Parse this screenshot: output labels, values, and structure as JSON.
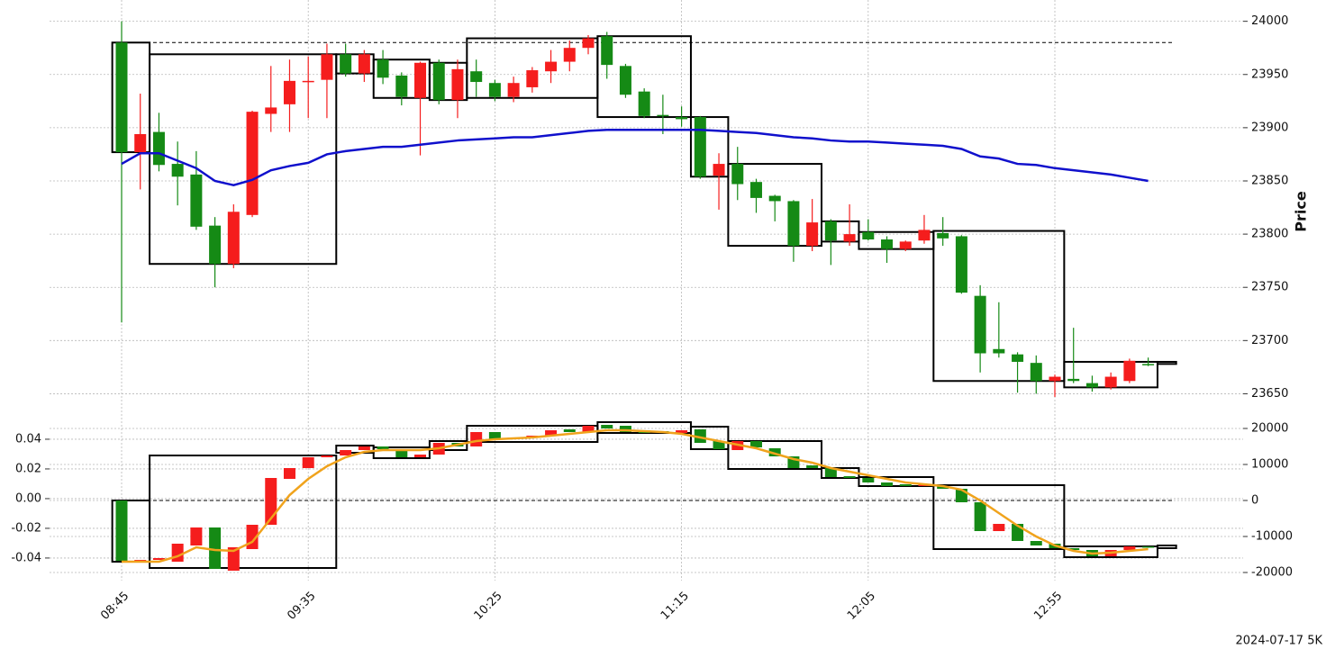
{
  "chart_data": [
    {
      "type": "candlestick",
      "ylabel": "Price",
      "ylim": [
        23625,
        24020
      ],
      "yticks": [
        23650,
        23700,
        23750,
        23800,
        23850,
        23900,
        23950,
        24000
      ],
      "grid": true,
      "up_color": "#f51d1d",
      "down_color": "#158a15",
      "open": [
        23980,
        23877,
        23896,
        23866,
        23856,
        23808,
        23772,
        23818,
        23913,
        23922,
        23943,
        23945,
        23969,
        23951,
        23964,
        23949,
        23928,
        23961,
        23926,
        23953,
        23942,
        23929,
        23938,
        23953,
        23962,
        23975,
        23986,
        23958,
        23934,
        23912,
        23910,
        23910,
        23855,
        23866,
        23849,
        23836,
        23831,
        23789,
        23812,
        23793,
        23802,
        23795,
        23786,
        23794,
        23801,
        23798,
        23742,
        23692,
        23687,
        23679,
        23662,
        23664,
        23660,
        23656,
        23662,
        23678
      ],
      "high": [
        24000,
        23932,
        23914,
        23887,
        23878,
        23816,
        23828,
        23916,
        23958,
        23964,
        23967,
        23979,
        23979,
        23973,
        23973,
        23952,
        23962,
        23964,
        23964,
        23964,
        23945,
        23948,
        23957,
        23973,
        23982,
        23987,
        23990,
        23960,
        23937,
        23931,
        23920,
        23911,
        23876,
        23882,
        23852,
        23837,
        23832,
        23833,
        23814,
        23828,
        23814,
        23798,
        23794,
        23818,
        23816,
        23799,
        23752,
        23736,
        23689,
        23686,
        23668,
        23712,
        23667,
        23670,
        23683,
        23684
      ],
      "low": [
        23717,
        23842,
        23859,
        23827,
        23804,
        23750,
        23768,
        23816,
        23896,
        23896,
        23909,
        23909,
        23948,
        23943,
        23941,
        23921,
        23874,
        23922,
        23909,
        23929,
        23925,
        23924,
        23933,
        23942,
        23953,
        23969,
        23946,
        23928,
        23909,
        23894,
        23901,
        23852,
        23823,
        23832,
        23820,
        23812,
        23774,
        23784,
        23771,
        23789,
        23794,
        23773,
        23784,
        23791,
        23789,
        23744,
        23670,
        23684,
        23651,
        23650,
        23647,
        23660,
        23652,
        23654,
        23660,
        23676
      ],
      "close": [
        23877,
        23894,
        23865,
        23854,
        23807,
        23772,
        23821,
        23915,
        23919,
        23944,
        23944,
        23969,
        23951,
        23969,
        23947,
        23929,
        23961,
        23926,
        23955,
        23943,
        23929,
        23942,
        23954,
        23962,
        23975,
        23984,
        23959,
        23931,
        23911,
        23911,
        23908,
        23854,
        23866,
        23847,
        23834,
        23831,
        23789,
        23811,
        23794,
        23800,
        23795,
        23786,
        23793,
        23804,
        23796,
        23745,
        23688,
        23688,
        23680,
        23662,
        23666,
        23662,
        23656,
        23666,
        23681,
        23677
      ],
      "line": {
        "color": "#1010cc",
        "values": [
          23866,
          23876,
          23876,
          23869,
          23862,
          23850,
          23846,
          23851,
          23860,
          23864,
          23867,
          23875,
          23878,
          23880,
          23882,
          23882,
          23884,
          23886,
          23888,
          23889,
          23890,
          23891,
          23891,
          23893,
          23895,
          23897,
          23898,
          23898,
          23898,
          23898,
          23898,
          23898,
          23897,
          23896,
          23895,
          23893,
          23891,
          23890,
          23888,
          23887,
          23887,
          23886,
          23885,
          23884,
          23883,
          23880,
          23873,
          23871,
          23866,
          23865,
          23862,
          23860,
          23858,
          23856,
          23853,
          23850
        ]
      },
      "boxes": [
        {
          "x0": -0.5,
          "x1": 1.5,
          "high": 23980,
          "low": 23877
        },
        {
          "x0": 1.5,
          "x1": 11.5,
          "high": 23969,
          "low": 23772
        },
        {
          "x0": 11.5,
          "x1": 13.5,
          "high": 23969,
          "low": 23951
        },
        {
          "x0": 13.5,
          "x1": 16.5,
          "high": 23964,
          "low": 23928
        },
        {
          "x0": 16.5,
          "x1": 18.5,
          "high": 23961,
          "low": 23926
        },
        {
          "x0": 18.5,
          "x1": 25.5,
          "high": 23984,
          "low": 23928
        },
        {
          "x0": 25.5,
          "x1": 30.5,
          "high": 23986,
          "low": 23910
        },
        {
          "x0": 30.5,
          "x1": 32.5,
          "high": 23910,
          "low": 23854
        },
        {
          "x0": 32.5,
          "x1": 37.5,
          "high": 23866,
          "low": 23789
        },
        {
          "x0": 37.5,
          "x1": 39.5,
          "high": 23812,
          "low": 23793
        },
        {
          "x0": 39.5,
          "x1": 43.5,
          "high": 23802,
          "low": 23786
        },
        {
          "x0": 43.5,
          "x1": 50.5,
          "high": 23803,
          "low": 23662
        },
        {
          "x0": 50.5,
          "x1": 55.5,
          "high": 23680,
          "low": 23656
        },
        {
          "x0": 55.5,
          "x1": 56.5,
          "high": 23680,
          "low": 23678
        }
      ],
      "hline": 23980
    },
    {
      "type": "candlestick",
      "categories": [
        "08:45",
        null,
        null,
        null,
        null,
        null,
        null,
        null,
        null,
        null,
        "09:35",
        null,
        null,
        null,
        null,
        null,
        null,
        null,
        null,
        null,
        "10:25",
        null,
        null,
        null,
        null,
        null,
        null,
        null,
        null,
        null,
        "11:15",
        null,
        null,
        null,
        null,
        null,
        null,
        null,
        null,
        null,
        "12:05",
        null,
        null,
        null,
        null,
        null,
        null,
        null,
        null,
        null,
        "12:55",
        null,
        null,
        null,
        null,
        null
      ],
      "ylim": [
        -22250,
        22000
      ],
      "yticks": [
        -20000,
        -10000,
        0,
        10000,
        20000
      ],
      "y2lim": [
        -0.0552,
        0.0521
      ],
      "y2ticks": [
        -0.04,
        -0.02,
        {
          "value": 0,
          "label": "0.00"
        },
        0.02,
        0.04
      ],
      "grid": true,
      "up_color": "#f51d1d",
      "down_color": "#158a15",
      "open": [
        0,
        -16750,
        -16500,
        -17000,
        -12500,
        -7500,
        -19500,
        -13500,
        -6750,
        6000,
        9000,
        12000,
        12500,
        14000,
        15000,
        14250,
        12000,
        12750,
        16000,
        15000,
        19000,
        17000,
        17500,
        18000,
        19750,
        19000,
        21000,
        20750,
        19500,
        19250,
        18750,
        19750,
        16500,
        14000,
        16500,
        14500,
        12250,
        9750,
        9000,
        6750,
        6250,
        5000,
        4500,
        4000,
        4000,
        3250,
        -500,
        -8500,
        -6500,
        -11250,
        -12000,
        -13250,
        -13750,
        -15500,
        -13750,
        -12750
      ],
      "close": [
        -16750,
        -16500,
        -16000,
        -12000,
        -7500,
        -19000,
        -13000,
        -6750,
        6250,
        9000,
        12000,
        12500,
        14000,
        15000,
        14250,
        12000,
        12750,
        16000,
        15000,
        19000,
        17000,
        17500,
        18000,
        19500,
        19000,
        20750,
        20000,
        19000,
        18750,
        18750,
        19500,
        16000,
        14250,
        16500,
        14750,
        12250,
        9000,
        9000,
        6500,
        6250,
        5000,
        4000,
        4000,
        4500,
        3250,
        -500,
        -8500,
        -6500,
        -11250,
        -12500,
        -13250,
        -13750,
        -15500,
        -13750,
        -12750,
        -13000
      ],
      "line": {
        "color": "#f0a31c",
        "values": [
          -17000,
          -17000,
          -17000,
          -15500,
          -13000,
          -13750,
          -14000,
          -11500,
          -5000,
          1500,
          6000,
          9500,
          12000,
          13500,
          14000,
          14000,
          14000,
          14500,
          15500,
          16500,
          17000,
          17250,
          17500,
          18000,
          18500,
          19000,
          19500,
          19500,
          19250,
          19000,
          18500,
          17500,
          16500,
          15500,
          14500,
          13000,
          11500,
          10500,
          9000,
          8000,
          7000,
          6000,
          5000,
          4500,
          4000,
          3000,
          0,
          -3500,
          -7000,
          -10000,
          -12500,
          -14000,
          -14750,
          -14500,
          -14000,
          -13500
        ]
      },
      "boxes": [
        {
          "x0": -0.5,
          "x1": 1.5,
          "high": 0,
          "low": -17000
        },
        {
          "x0": 1.5,
          "x1": 11.5,
          "high": 12500,
          "low": -18750
        },
        {
          "x0": 11.5,
          "x1": 13.5,
          "high": 15250,
          "low": 13250
        },
        {
          "x0": 13.5,
          "x1": 16.5,
          "high": 14750,
          "low": 11750
        },
        {
          "x0": 16.5,
          "x1": 18.5,
          "high": 16500,
          "low": 14000
        },
        {
          "x0": 18.5,
          "x1": 25.5,
          "high": 20750,
          "low": 16250
        },
        {
          "x0": 25.5,
          "x1": 30.5,
          "high": 21750,
          "low": 18750
        },
        {
          "x0": 30.5,
          "x1": 32.5,
          "high": 20500,
          "low": 14250
        },
        {
          "x0": 32.5,
          "x1": 37.5,
          "high": 16500,
          "low": 8750
        },
        {
          "x0": 37.5,
          "x1": 39.5,
          "high": 9000,
          "low": 6250
        },
        {
          "x0": 39.5,
          "x1": 43.5,
          "high": 6500,
          "low": 4000
        },
        {
          "x0": 43.5,
          "x1": 50.5,
          "high": 4250,
          "low": -13500
        },
        {
          "x0": 50.5,
          "x1": 55.5,
          "high": -12750,
          "low": -15750
        },
        {
          "x0": 55.5,
          "x1": 56.5,
          "high": -12500,
          "low": -13250
        }
      ],
      "hline": 0
    }
  ],
  "footer": "2024-07-17 5K"
}
